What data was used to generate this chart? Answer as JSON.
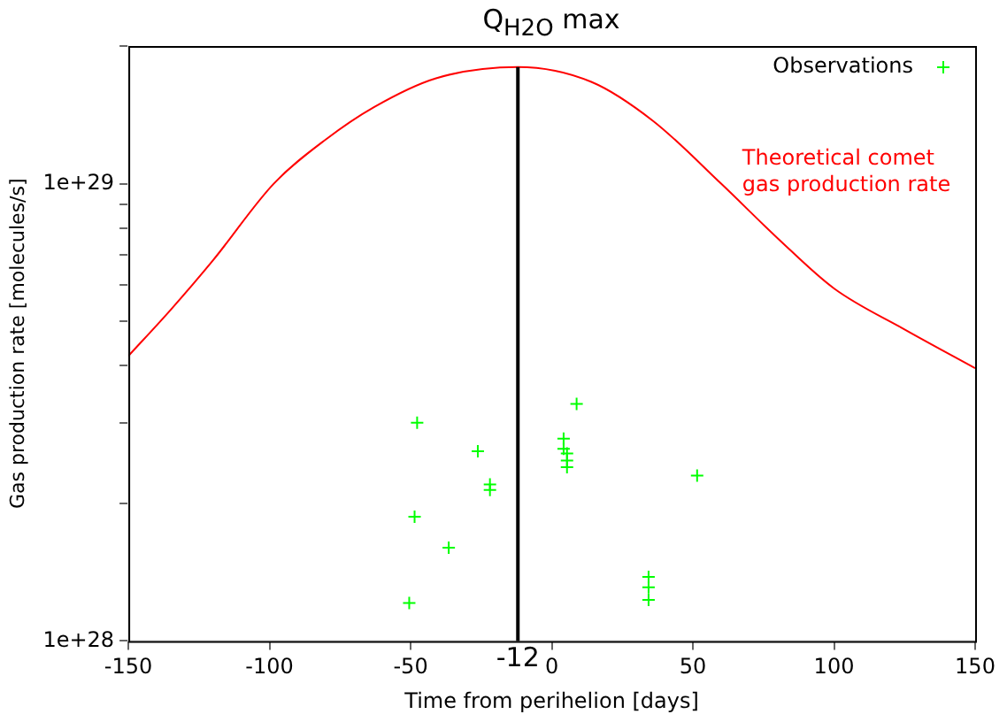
{
  "chart_data": {
    "type": "scatter",
    "title": "Q$_{H2O}$ max",
    "xlabel": "Time from perihelion [days]",
    "ylabel": "Gas production rate [molecules/s]",
    "log": "y",
    "grid": false,
    "legend": "top right",
    "marker": "cross",
    "xlim": [
      -150,
      150
    ],
    "xticks": [
      -150,
      -100,
      -50,
      0,
      50,
      100,
      150
    ],
    "ylim": [
      1e+28,
      2e+29
    ],
    "yticks": [
      {
        "value": 1e+28,
        "label": "1e+28"
      },
      {
        "value": 2e+28,
        "label": null
      },
      {
        "value": 3e+28,
        "label": null
      },
      {
        "value": 4e+28,
        "label": null
      },
      {
        "value": 5e+28,
        "label": null
      },
      {
        "value": 6e+28,
        "label": null
      },
      {
        "value": 7e+28,
        "label": null
      },
      {
        "value": 8e+28,
        "label": null
      },
      {
        "value": 9e+28,
        "label": null
      },
      {
        "value": 1e+29,
        "label": "1e+29"
      },
      {
        "value": 2e+29,
        "label": null
      }
    ],
    "ref_lines": [
      {
        "axis": "x",
        "value": -12,
        "label": "-12",
        "color": "#000000"
      }
    ],
    "series": [
      {
        "name": "Observations",
        "color": "#00ff00",
        "x": [
          -47.7,
          -26.2,
          -21.9,
          -21.9,
          -48.6,
          -36.5,
          -50.5,
          8.8,
          4.2,
          4.2,
          5.4,
          5.4,
          5.4,
          34.3,
          34.3,
          34.3,
          51.5
        ],
        "values": [
          3e+28,
          2.6e+28,
          2.2e+28,
          2.14e+28,
          1.87e+28,
          1.6e+28,
          1.21e+28,
          3.3e+28,
          2.77e+28,
          2.63e+28,
          2.57e+28,
          2.48e+28,
          2.4e+28,
          1.38e+28,
          1.31e+28,
          1.23e+28,
          2.3e+28
        ]
      },
      {
        "name": "Theoretical comet gas production rate",
        "type": "line",
        "color": "#ff0000",
        "marker": "none",
        "x": [
          -150,
          -135,
          -120,
          -98.5,
          -80,
          -63,
          -41,
          -12,
          14,
          36,
          60,
          80,
          100,
          125,
          150
        ],
        "values": [
          4.2e+28,
          5.3e+28,
          6.8e+28,
          1e+29,
          1.25e+29,
          1.47e+29,
          1.7e+29,
          1.8e+29,
          1.67e+29,
          1.37e+29,
          1e+29,
          7.6e+28,
          5.9e+28,
          4.8e+28,
          3.95e+28
        ]
      }
    ]
  }
}
